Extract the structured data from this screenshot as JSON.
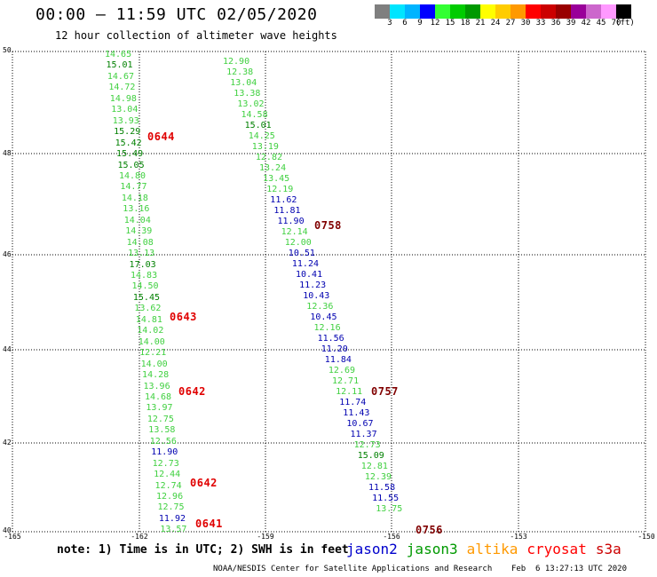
{
  "header": {
    "title": "00:00 – 11:59 UTC 02/05/2020",
    "subtitle": "12 hour collection of altimeter wave heights"
  },
  "color_legend": {
    "colors": [
      "#7f7f7f",
      "#00e5ff",
      "#00b4ff",
      "#0000ff",
      "#33ff33",
      "#00cc00",
      "#009900",
      "#ffff00",
      "#ffcc00",
      "#ff9900",
      "#ff0000",
      "#cc0000",
      "#990000",
      "#990099",
      "#cc66cc",
      "#ff99ff",
      "#000000"
    ],
    "labels": [
      "3",
      "6",
      "9",
      "12",
      "15",
      "18",
      "21",
      "24",
      "27",
      "30",
      "33",
      "36",
      "39",
      "42",
      "45",
      "70",
      "(ft)"
    ]
  },
  "map": {
    "lat_labels": [
      "50",
      "48",
      "46",
      "44",
      "42",
      "40"
    ],
    "lon_labels": [
      "-165",
      "-162",
      "-159",
      "-156",
      "-153",
      "-150"
    ]
  },
  "tracks": {
    "colors": {
      "green": "#40d040",
      "dkgreen": "#008000",
      "blue": "#0000b0",
      "red": "#e00000",
      "maroon": "#800000"
    },
    "points": [
      {
        "v": "14.65",
        "c": "green"
      },
      {
        "v": "15.01",
        "c": "dkgreen"
      },
      {
        "v": "14.67",
        "c": "green"
      },
      {
        "v": "14.72",
        "c": "green"
      },
      {
        "v": "14.98",
        "c": "green"
      },
      {
        "v": "13.04",
        "c": "green"
      },
      {
        "v": "13.93",
        "c": "green"
      },
      {
        "v": "15.29",
        "c": "dkgreen"
      },
      {
        "v": "15.42",
        "c": "dkgreen"
      },
      {
        "v": "15.49",
        "c": "dkgreen"
      },
      {
        "v": "15.05",
        "c": "dkgreen"
      },
      {
        "v": "14.80",
        "c": "green"
      },
      {
        "v": "14.77",
        "c": "green"
      },
      {
        "v": "14.18",
        "c": "green"
      },
      {
        "v": "13.16",
        "c": "green"
      },
      {
        "v": "14.04",
        "c": "green"
      },
      {
        "v": "14.39",
        "c": "green"
      },
      {
        "v": "14.08",
        "c": "green"
      },
      {
        "v": "13.13",
        "c": "green"
      },
      {
        "v": "17.03",
        "c": "dkgreen"
      },
      {
        "v": "14.83",
        "c": "green"
      },
      {
        "v": "14.50",
        "c": "green"
      },
      {
        "v": "15.45",
        "c": "dkgreen"
      },
      {
        "v": "13.62",
        "c": "green"
      },
      {
        "v": "14.81",
        "c": "green"
      },
      {
        "v": "14.02",
        "c": "green"
      },
      {
        "v": "14.00",
        "c": "green"
      },
      {
        "v": "12.21",
        "c": "green"
      },
      {
        "v": "14.00",
        "c": "green"
      },
      {
        "v": "14.28",
        "c": "green"
      },
      {
        "v": "13.96",
        "c": "green"
      },
      {
        "v": "14.68",
        "c": "green"
      },
      {
        "v": "13.97",
        "c": "green"
      },
      {
        "v": "12.75",
        "c": "green"
      },
      {
        "v": "13.58",
        "c": "green"
      },
      {
        "v": "12.56",
        "c": "green"
      },
      {
        "v": "11.90",
        "c": "blue"
      },
      {
        "v": "12.73",
        "c": "green"
      },
      {
        "v": "12.44",
        "c": "green"
      },
      {
        "v": "12.74",
        "c": "green"
      },
      {
        "v": "12.96",
        "c": "green"
      },
      {
        "v": "12.75",
        "c": "green"
      },
      {
        "v": "11.92",
        "c": "blue"
      },
      {
        "v": "13.57",
        "c": "green"
      },
      {
        "v": "12.90",
        "c": "green"
      },
      {
        "v": "12.38",
        "c": "green"
      },
      {
        "v": "13.04",
        "c": "green"
      },
      {
        "v": "13.38",
        "c": "green"
      },
      {
        "v": "13.02",
        "c": "green"
      },
      {
        "v": "14.58",
        "c": "green"
      },
      {
        "v": "15.01",
        "c": "dkgreen"
      },
      {
        "v": "14.25",
        "c": "green"
      },
      {
        "v": "13.19",
        "c": "green"
      },
      {
        "v": "12.82",
        "c": "green"
      },
      {
        "v": "13.24",
        "c": "green"
      },
      {
        "v": "13.45",
        "c": "green"
      },
      {
        "v": "12.19",
        "c": "green"
      },
      {
        "v": "11.62",
        "c": "blue"
      },
      {
        "v": "11.81",
        "c": "blue"
      },
      {
        "v": "11.90",
        "c": "blue"
      },
      {
        "v": "12.14",
        "c": "green"
      },
      {
        "v": "12.00",
        "c": "green"
      },
      {
        "v": "10.51",
        "c": "blue"
      },
      {
        "v": "11.24",
        "c": "blue"
      },
      {
        "v": "10.41",
        "c": "blue"
      },
      {
        "v": "11.23",
        "c": "blue"
      },
      {
        "v": "10.43",
        "c": "blue"
      },
      {
        "v": "12.36",
        "c": "green"
      },
      {
        "v": "10.45",
        "c": "blue"
      },
      {
        "v": "12.16",
        "c": "green"
      },
      {
        "v": "11.56",
        "c": "blue"
      },
      {
        "v": "11.20",
        "c": "blue"
      },
      {
        "v": "11.84",
        "c": "blue"
      },
      {
        "v": "12.69",
        "c": "green"
      },
      {
        "v": "12.71",
        "c": "green"
      },
      {
        "v": "12.11",
        "c": "green"
      },
      {
        "v": "11.74",
        "c": "blue"
      },
      {
        "v": "11.43",
        "c": "blue"
      },
      {
        "v": "10.67",
        "c": "blue"
      },
      {
        "v": "11.37",
        "c": "blue"
      },
      {
        "v": "12.73",
        "c": "green"
      },
      {
        "v": "15.09",
        "c": "dkgreen"
      },
      {
        "v": "12.81",
        "c": "green"
      },
      {
        "v": "12.39",
        "c": "green"
      },
      {
        "v": "11.58",
        "c": "blue"
      },
      {
        "v": "11.55",
        "c": "blue"
      },
      {
        "v": "13.75",
        "c": "green"
      }
    ],
    "pass_labels": [
      {
        "t": "0644",
        "c": "red"
      },
      {
        "t": "0643",
        "c": "red"
      },
      {
        "t": "0642",
        "c": "red"
      },
      {
        "t": "0642",
        "c": "red"
      },
      {
        "t": "0641",
        "c": "red"
      },
      {
        "t": "0758",
        "c": "maroon"
      },
      {
        "t": "0757",
        "c": "maroon"
      },
      {
        "t": "0756",
        "c": "maroon"
      }
    ]
  },
  "note": "note: 1) Time is in UTC; 2) SWH is in feet",
  "satellites": [
    {
      "name": "jason2",
      "color": "#0000cc"
    },
    {
      "name": "jason3",
      "color": "#009900"
    },
    {
      "name": "altika",
      "color": "#ff9900"
    },
    {
      "name": "cryosat",
      "color": "#ff0000"
    },
    {
      "name": "s3a",
      "color": "#cc0000"
    }
  ],
  "footer": "NOAA/NESDIS Center for Satellite Applications and Research    Feb  6 13:27:13 UTC 2020"
}
